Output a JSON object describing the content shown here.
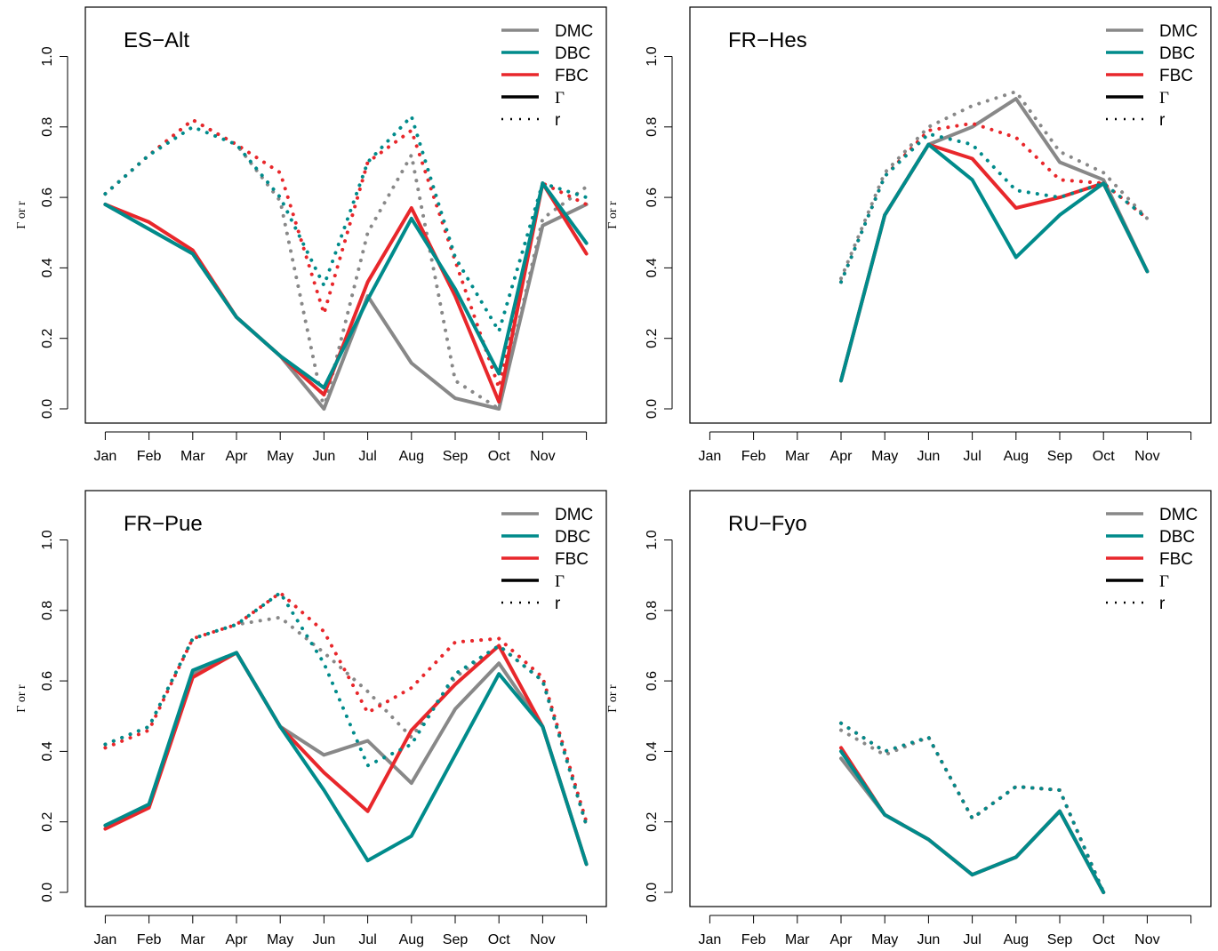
{
  "chart_data": [
    {
      "type": "line",
      "title": "ES−Alt",
      "ylabel": "Γ or r",
      "xlabel": "",
      "ylim": [
        0,
        1.1
      ],
      "x_ticks": [
        1,
        2,
        3,
        4,
        5,
        6,
        7,
        8,
        9,
        10,
        11,
        12
      ],
      "x_tick_labels": [
        "Jan",
        "Feb",
        "Mar",
        "Apr",
        "May",
        "Jun",
        "Jul",
        "Aug",
        "Sep",
        "Oct",
        "Nov",
        ""
      ],
      "y_ticks": [
        0,
        0.2,
        0.4,
        0.6,
        0.8,
        1.0
      ],
      "y_tick_labels": [
        "0.0",
        "0.2",
        "0.4",
        "0.6",
        "0.8",
        "1.0"
      ],
      "legend": {
        "position": "top-right",
        "entries": [
          {
            "label": "DMC",
            "style": "solid",
            "color": "#888888"
          },
          {
            "label": "DBC",
            "style": "solid",
            "color": "#008b8b"
          },
          {
            "label": "FBC",
            "style": "solid",
            "color": "#e8272b"
          },
          {
            "label": "Γ",
            "style": "solid",
            "color": "#000000"
          },
          {
            "label": "r",
            "style": "dotted",
            "color": "#000000"
          }
        ]
      },
      "series": [
        {
          "name": "DMC",
          "metric": "Γ",
          "style": "solid",
          "color": "#888888",
          "x": [
            1,
            2,
            3,
            4,
            5,
            6,
            7,
            8,
            9,
            10,
            11,
            12
          ],
          "y": [
            0.58,
            0.51,
            0.44,
            0.26,
            0.15,
            0.0,
            0.32,
            0.13,
            0.03,
            0.0,
            0.52,
            0.58
          ]
        },
        {
          "name": "DMC",
          "metric": "r",
          "style": "dotted",
          "color": "#888888",
          "x": [
            1,
            2,
            3,
            4,
            5,
            6,
            7,
            8,
            9,
            10,
            11,
            12
          ],
          "y": [
            0.61,
            0.72,
            0.82,
            0.75,
            0.59,
            0.0,
            0.5,
            0.72,
            0.08,
            0.0,
            0.54,
            0.63
          ]
        },
        {
          "name": "FBC",
          "metric": "Γ",
          "style": "solid",
          "color": "#e8272b",
          "x": [
            1,
            2,
            3,
            4,
            5,
            6,
            7,
            8,
            9,
            10,
            11,
            12
          ],
          "y": [
            0.58,
            0.53,
            0.45,
            0.26,
            0.15,
            0.04,
            0.36,
            0.57,
            0.32,
            0.02,
            0.64,
            0.44
          ]
        },
        {
          "name": "FBC",
          "metric": "r",
          "style": "dotted",
          "color": "#e8272b",
          "x": [
            1,
            2,
            3,
            4,
            5,
            6,
            7,
            8,
            9,
            10,
            11,
            12
          ],
          "y": [
            0.61,
            0.72,
            0.82,
            0.75,
            0.67,
            0.27,
            0.7,
            0.79,
            0.42,
            0.06,
            0.64,
            0.58
          ]
        },
        {
          "name": "DBC",
          "metric": "Γ",
          "style": "solid",
          "color": "#008b8b",
          "x": [
            1,
            2,
            3,
            4,
            5,
            6,
            7,
            8,
            9,
            10,
            11,
            12
          ],
          "y": [
            0.58,
            0.51,
            0.44,
            0.26,
            0.15,
            0.06,
            0.31,
            0.54,
            0.34,
            0.1,
            0.64,
            0.47
          ]
        },
        {
          "name": "DBC",
          "metric": "r",
          "style": "dotted",
          "color": "#008b8b",
          "x": [
            1,
            2,
            3,
            4,
            5,
            6,
            7,
            8,
            9,
            10,
            11,
            12
          ],
          "y": [
            0.61,
            0.72,
            0.8,
            0.75,
            0.6,
            0.35,
            0.7,
            0.83,
            0.43,
            0.22,
            0.64,
            0.6
          ]
        }
      ]
    },
    {
      "type": "line",
      "title": "FR−Hes",
      "ylabel": "Γ or r",
      "xlabel": "",
      "ylim": [
        0,
        1.1
      ],
      "x_ticks": [
        1,
        2,
        3,
        4,
        5,
        6,
        7,
        8,
        9,
        10,
        11,
        12
      ],
      "x_tick_labels": [
        "Jan",
        "Feb",
        "Mar",
        "Apr",
        "May",
        "Jun",
        "Jul",
        "Aug",
        "Sep",
        "Oct",
        "Nov",
        ""
      ],
      "y_ticks": [
        0,
        0.2,
        0.4,
        0.6,
        0.8,
        1.0
      ],
      "y_tick_labels": [
        "0.0",
        "0.2",
        "0.4",
        "0.6",
        "0.8",
        "1.0"
      ],
      "legend": {
        "position": "top-right",
        "entries": [
          {
            "label": "DMC",
            "style": "solid",
            "color": "#888888"
          },
          {
            "label": "DBC",
            "style": "solid",
            "color": "#008b8b"
          },
          {
            "label": "FBC",
            "style": "solid",
            "color": "#e8272b"
          },
          {
            "label": "Γ",
            "style": "solid",
            "color": "#000000"
          },
          {
            "label": "r",
            "style": "dotted",
            "color": "#000000"
          }
        ]
      },
      "series": [
        {
          "name": "DMC",
          "metric": "Γ",
          "style": "solid",
          "color": "#888888",
          "x": [
            4,
            5,
            6,
            7,
            8,
            9,
            10,
            11
          ],
          "y": [
            0.08,
            0.55,
            0.75,
            0.8,
            0.88,
            0.7,
            0.65,
            0.39
          ]
        },
        {
          "name": "DMC",
          "metric": "r",
          "style": "dotted",
          "color": "#888888",
          "x": [
            4,
            5,
            6,
            7,
            8,
            9,
            10,
            11
          ],
          "y": [
            0.37,
            0.67,
            0.8,
            0.86,
            0.9,
            0.73,
            0.67,
            0.54
          ]
        },
        {
          "name": "FBC",
          "metric": "Γ",
          "style": "solid",
          "color": "#e8272b",
          "x": [
            4,
            5,
            6,
            7,
            8,
            9,
            10,
            11
          ],
          "y": [
            0.08,
            0.55,
            0.75,
            0.71,
            0.57,
            0.6,
            0.64,
            0.39
          ]
        },
        {
          "name": "FBC",
          "metric": "r",
          "style": "dotted",
          "color": "#e8272b",
          "x": [
            4,
            5,
            6,
            7,
            8,
            9,
            10,
            11
          ],
          "y": [
            0.36,
            0.66,
            0.79,
            0.81,
            0.77,
            0.65,
            0.64,
            0.54
          ]
        },
        {
          "name": "DBC",
          "metric": "Γ",
          "style": "solid",
          "color": "#008b8b",
          "x": [
            4,
            5,
            6,
            7,
            8,
            9,
            10,
            11
          ],
          "y": [
            0.08,
            0.55,
            0.75,
            0.65,
            0.43,
            0.55,
            0.64,
            0.39
          ]
        },
        {
          "name": "DBC",
          "metric": "r",
          "style": "dotted",
          "color": "#008b8b",
          "x": [
            4,
            5,
            6,
            7,
            8,
            9,
            10,
            11
          ],
          "y": [
            0.36,
            0.66,
            0.78,
            0.75,
            0.62,
            0.6,
            0.64,
            0.54
          ]
        }
      ]
    },
    {
      "type": "line",
      "title": "FR−Pue",
      "ylabel": "Γ or r",
      "xlabel": "",
      "ylim": [
        0,
        1.1
      ],
      "x_ticks": [
        1,
        2,
        3,
        4,
        5,
        6,
        7,
        8,
        9,
        10,
        11,
        12
      ],
      "x_tick_labels": [
        "Jan",
        "Feb",
        "Mar",
        "Apr",
        "May",
        "Jun",
        "Jul",
        "Aug",
        "Sep",
        "Oct",
        "Nov",
        ""
      ],
      "y_ticks": [
        0,
        0.2,
        0.4,
        0.6,
        0.8,
        1.0
      ],
      "y_tick_labels": [
        "0.0",
        "0.2",
        "0.4",
        "0.6",
        "0.8",
        "1.0"
      ],
      "legend": {
        "position": "top-right",
        "entries": [
          {
            "label": "DMC",
            "style": "solid",
            "color": "#888888"
          },
          {
            "label": "DBC",
            "style": "solid",
            "color": "#008b8b"
          },
          {
            "label": "FBC",
            "style": "solid",
            "color": "#e8272b"
          },
          {
            "label": "Γ",
            "style": "solid",
            "color": "#000000"
          },
          {
            "label": "r",
            "style": "dotted",
            "color": "#000000"
          }
        ]
      },
      "series": [
        {
          "name": "DMC",
          "metric": "Γ",
          "style": "solid",
          "color": "#888888",
          "x": [
            1,
            2,
            3,
            4,
            5,
            6,
            7,
            8,
            9,
            10,
            11,
            12
          ],
          "y": [
            0.19,
            0.25,
            0.62,
            0.68,
            0.47,
            0.39,
            0.43,
            0.31,
            0.52,
            0.65,
            0.47,
            0.08
          ]
        },
        {
          "name": "DMC",
          "metric": "r",
          "style": "dotted",
          "color": "#888888",
          "x": [
            1,
            2,
            3,
            4,
            5,
            6,
            7,
            8,
            9,
            10,
            11,
            12
          ],
          "y": [
            0.42,
            0.47,
            0.72,
            0.76,
            0.78,
            0.68,
            0.57,
            0.44,
            0.61,
            0.7,
            0.6,
            0.19
          ]
        },
        {
          "name": "FBC",
          "metric": "Γ",
          "style": "solid",
          "color": "#e8272b",
          "x": [
            1,
            2,
            3,
            4,
            5,
            6,
            7,
            8,
            9,
            10,
            11,
            12
          ],
          "y": [
            0.18,
            0.24,
            0.61,
            0.68,
            0.47,
            0.34,
            0.23,
            0.46,
            0.59,
            0.7,
            0.47,
            0.08
          ]
        },
        {
          "name": "FBC",
          "metric": "r",
          "style": "dotted",
          "color": "#e8272b",
          "x": [
            1,
            2,
            3,
            4,
            5,
            6,
            7,
            8,
            9,
            10,
            11,
            12
          ],
          "y": [
            0.41,
            0.46,
            0.72,
            0.76,
            0.85,
            0.74,
            0.51,
            0.58,
            0.71,
            0.72,
            0.61,
            0.2
          ]
        },
        {
          "name": "DBC",
          "metric": "Γ",
          "style": "solid",
          "color": "#008b8b",
          "x": [
            1,
            2,
            3,
            4,
            5,
            6,
            7,
            8,
            9,
            10,
            11,
            12
          ],
          "y": [
            0.19,
            0.25,
            0.63,
            0.68,
            0.47,
            0.29,
            0.09,
            0.16,
            0.39,
            0.62,
            0.47,
            0.08
          ]
        },
        {
          "name": "DBC",
          "metric": "r",
          "style": "dotted",
          "color": "#008b8b",
          "x": [
            1,
            2,
            3,
            4,
            5,
            6,
            7,
            8,
            9,
            10,
            11,
            12
          ],
          "y": [
            0.42,
            0.47,
            0.72,
            0.76,
            0.85,
            0.65,
            0.36,
            0.42,
            0.62,
            0.7,
            0.6,
            0.19
          ]
        }
      ]
    },
    {
      "type": "line",
      "title": "RU−Fyo",
      "ylabel": "Γ or r",
      "xlabel": "",
      "ylim": [
        0,
        1.1
      ],
      "x_ticks": [
        1,
        2,
        3,
        4,
        5,
        6,
        7,
        8,
        9,
        10,
        11,
        12
      ],
      "x_tick_labels": [
        "Jan",
        "Feb",
        "Mar",
        "Apr",
        "May",
        "Jun",
        "Jul",
        "Aug",
        "Sep",
        "Oct",
        "Nov",
        ""
      ],
      "y_ticks": [
        0,
        0.2,
        0.4,
        0.6,
        0.8,
        1.0
      ],
      "y_tick_labels": [
        "0.0",
        "0.2",
        "0.4",
        "0.6",
        "0.8",
        "1.0"
      ],
      "legend": {
        "position": "top-right",
        "entries": [
          {
            "label": "DMC",
            "style": "solid",
            "color": "#888888"
          },
          {
            "label": "DBC",
            "style": "solid",
            "color": "#008b8b"
          },
          {
            "label": "FBC",
            "style": "solid",
            "color": "#e8272b"
          },
          {
            "label": "Γ",
            "style": "solid",
            "color": "#000000"
          },
          {
            "label": "r",
            "style": "dotted",
            "color": "#000000"
          }
        ]
      },
      "series": [
        {
          "name": "DMC",
          "metric": "Γ",
          "style": "solid",
          "color": "#888888",
          "x": [
            4,
            5,
            6,
            7,
            8,
            9,
            10
          ],
          "y": [
            0.38,
            0.22,
            0.15,
            0.05,
            0.1,
            0.23,
            0.0
          ]
        },
        {
          "name": "DMC",
          "metric": "r",
          "style": "dotted",
          "color": "#888888",
          "x": [
            4,
            5,
            6,
            7,
            8,
            9,
            10
          ],
          "y": [
            0.46,
            0.39,
            0.44,
            0.21,
            0.3,
            0.29,
            0.0
          ]
        },
        {
          "name": "FBC",
          "metric": "Γ",
          "style": "solid",
          "color": "#e8272b",
          "x": [
            4,
            5,
            6,
            7,
            8,
            9,
            10
          ],
          "y": [
            0.41,
            0.22,
            0.15,
            0.05,
            0.1,
            0.23,
            0.0
          ]
        },
        {
          "name": "FBC",
          "metric": "r",
          "style": "dotted",
          "color": "#e8272b",
          "x": [
            4,
            5,
            6,
            7,
            8,
            9,
            10
          ],
          "y": [
            0.48,
            0.4,
            0.44,
            0.21,
            0.3,
            0.29,
            0.0
          ]
        },
        {
          "name": "DBC",
          "metric": "Γ",
          "style": "solid",
          "color": "#008b8b",
          "x": [
            4,
            5,
            6,
            7,
            8,
            9,
            10
          ],
          "y": [
            0.4,
            0.22,
            0.15,
            0.05,
            0.1,
            0.23,
            0.0
          ]
        },
        {
          "name": "DBC",
          "metric": "r",
          "style": "dotted",
          "color": "#008b8b",
          "x": [
            4,
            5,
            6,
            7,
            8,
            9,
            10
          ],
          "y": [
            0.48,
            0.4,
            0.44,
            0.21,
            0.3,
            0.29,
            0.0
          ]
        }
      ]
    }
  ]
}
